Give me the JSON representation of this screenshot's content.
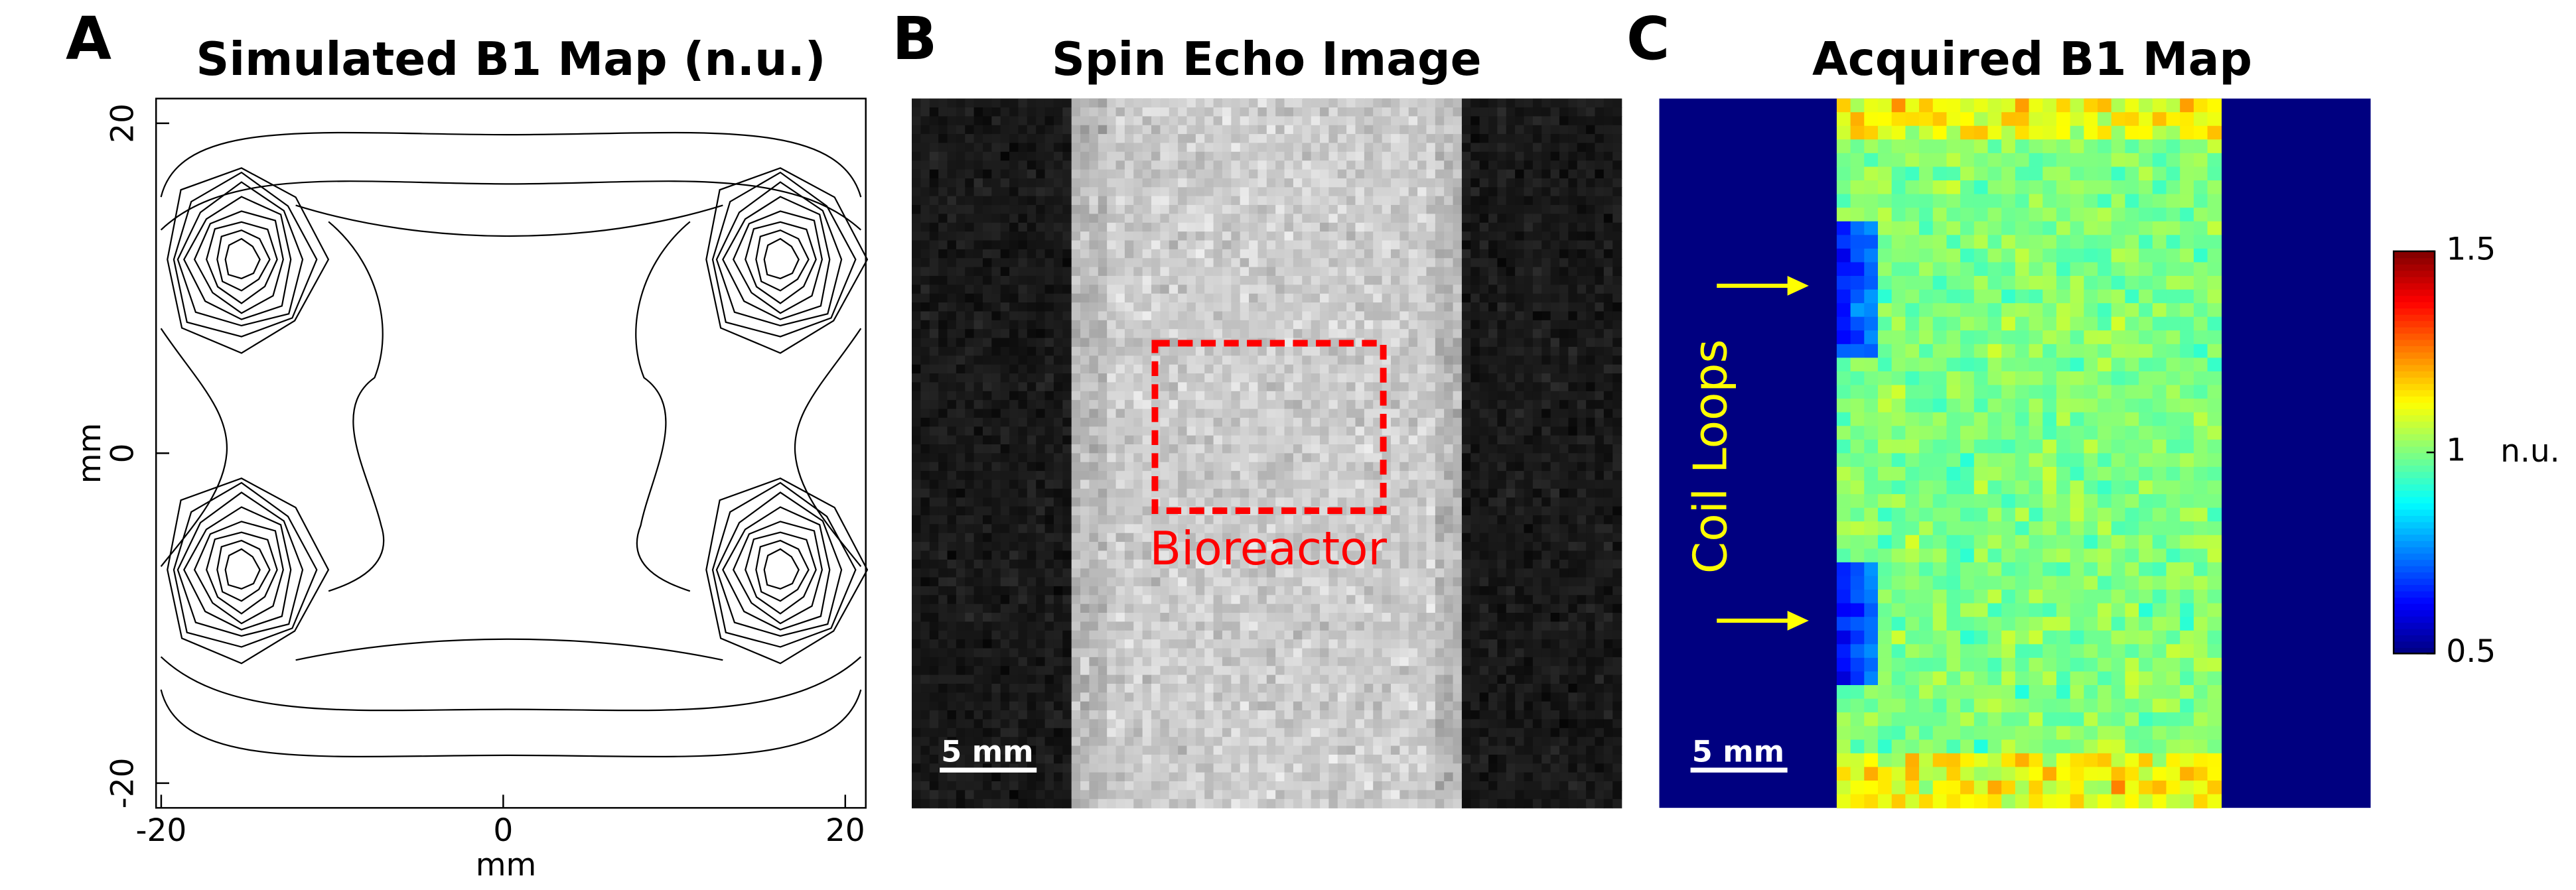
{
  "chart_data": [
    {
      "type": "contour",
      "panel": "A",
      "title": "Simulated B1 Map (n.u.)",
      "x_label": "mm",
      "y_label": "mm",
      "xlim": [
        -20.3,
        21.2
      ],
      "ylim": [
        -21.5,
        21.5
      ],
      "xticks": [
        -20,
        0,
        20
      ],
      "yticks": [
        -20,
        0,
        20
      ]
    },
    {
      "type": "image",
      "panel": "B",
      "title": "Spin Echo Image",
      "annotation": "Bioreactor",
      "scale_bar": "5 mm"
    },
    {
      "type": "heatmap",
      "panel": "C",
      "title": "Acquired B1 Map",
      "annotation": "Coil Loops",
      "scale_bar": "5 mm",
      "colorbar_label": "n.u.",
      "clim": [
        0.5,
        1.5
      ],
      "cticks": [
        0.5,
        1,
        1.5
      ]
    }
  ]
}
